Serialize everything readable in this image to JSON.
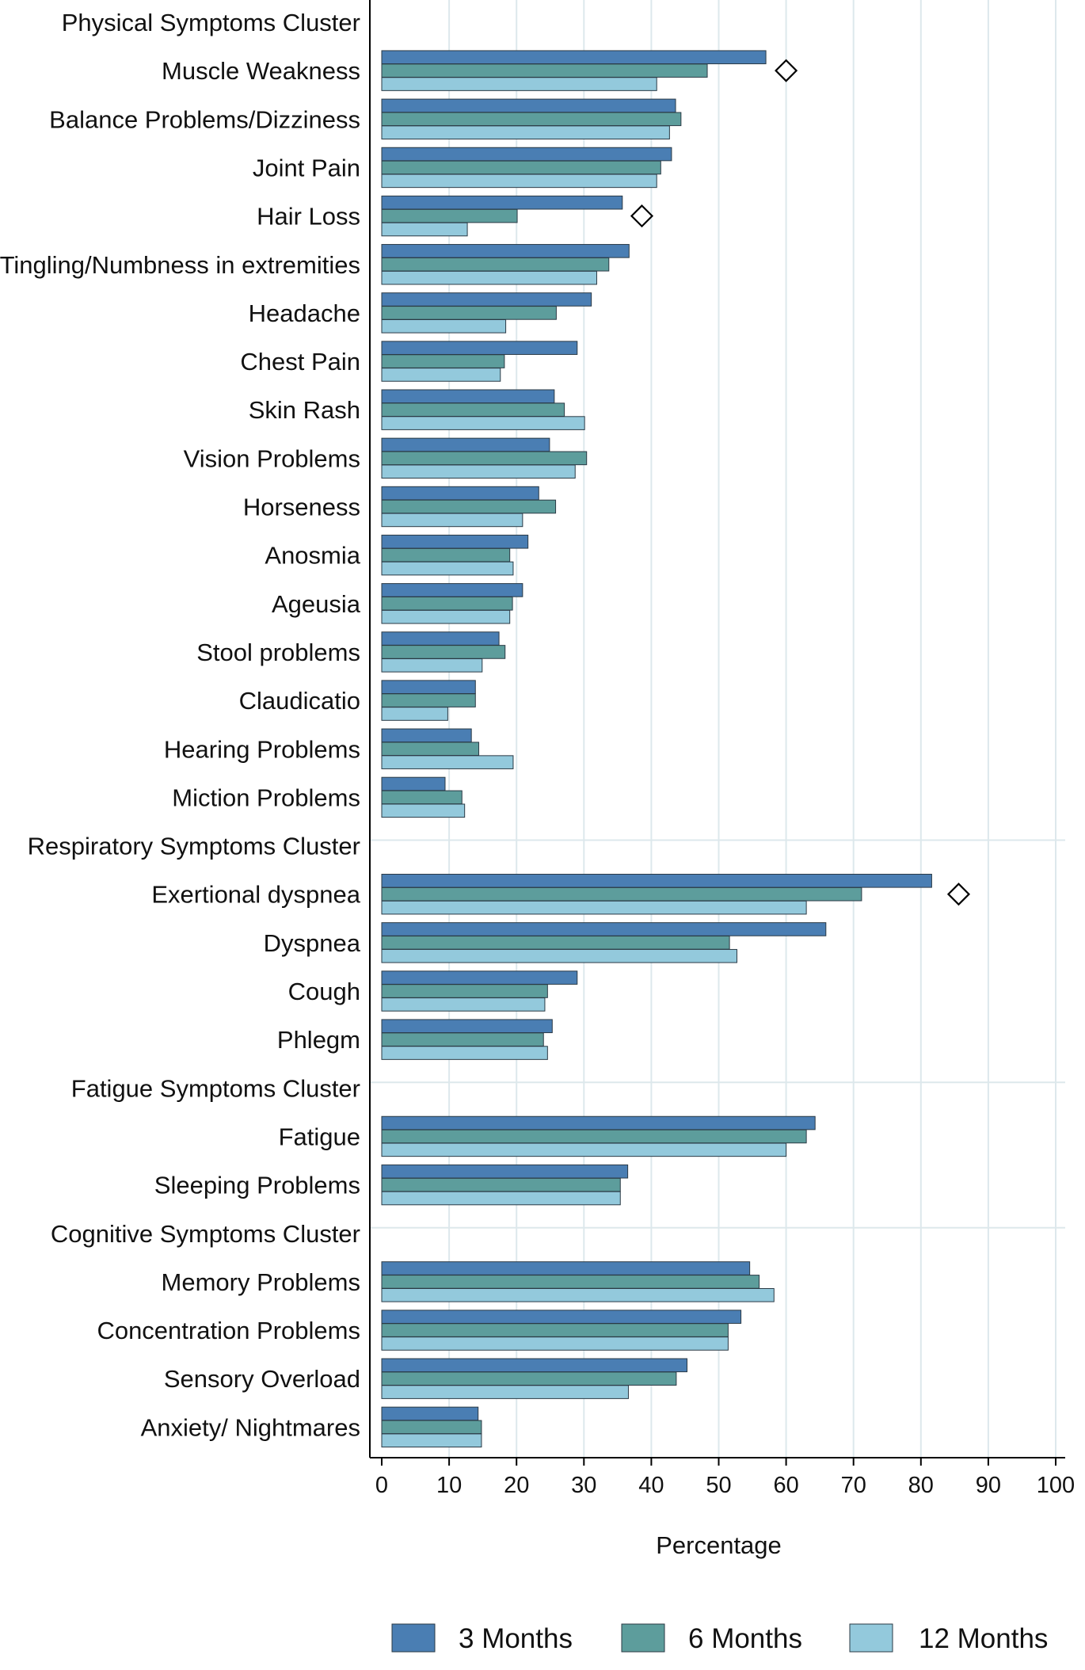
{
  "chart_data": {
    "type": "bar",
    "orientation": "horizontal",
    "xlabel": "Percentage",
    "xlim": [
      0,
      100
    ],
    "xticks": [
      0,
      10,
      20,
      30,
      40,
      50,
      60,
      70,
      80,
      90,
      100
    ],
    "grid": true,
    "legend_position": "bottom",
    "series": [
      {
        "name": "3 Months",
        "color": "#4a7eb3"
      },
      {
        "name": "6 Months",
        "color": "#5d9d9c"
      },
      {
        "name": "12 Months",
        "color": "#93c9dc"
      }
    ],
    "rows": [
      {
        "label": "Physical Symptoms Cluster",
        "header": true
      },
      {
        "label": "Muscle Weakness",
        "values": [
          57,
          48.3,
          40.8
        ],
        "marker": 60
      },
      {
        "label": "Balance Problems/Dizziness",
        "values": [
          43.6,
          44.4,
          42.7
        ]
      },
      {
        "label": "Joint Pain",
        "values": [
          43,
          41.4,
          40.8
        ]
      },
      {
        "label": "Hair Loss",
        "values": [
          35.7,
          20.1,
          12.7
        ],
        "marker": 38.6
      },
      {
        "label": "Tingling/Numbness in extremities",
        "values": [
          36.7,
          33.7,
          31.9
        ]
      },
      {
        "label": "Headache",
        "values": [
          31.1,
          25.9,
          18.4
        ]
      },
      {
        "label": "Chest Pain",
        "values": [
          29,
          18.2,
          17.6
        ]
      },
      {
        "label": "Skin Rash",
        "values": [
          25.6,
          27.1,
          30.1
        ]
      },
      {
        "label": "Vision Problems",
        "values": [
          24.9,
          30.4,
          28.7
        ]
      },
      {
        "label": "Horseness",
        "values": [
          23.3,
          25.8,
          20.9
        ]
      },
      {
        "label": "Anosmia",
        "values": [
          21.7,
          19,
          19.5
        ]
      },
      {
        "label": "Ageusia",
        "values": [
          20.9,
          19.4,
          19
        ]
      },
      {
        "label": "Stool problems",
        "values": [
          17.4,
          18.3,
          14.9
        ]
      },
      {
        "label": "Claudicatio",
        "values": [
          13.9,
          13.9,
          9.8
        ]
      },
      {
        "label": "Hearing Problems",
        "values": [
          13.3,
          14.4,
          19.5
        ]
      },
      {
        "label": "Miction Problems",
        "values": [
          9.4,
          11.9,
          12.3
        ]
      },
      {
        "label": "Respiratory Symptoms Cluster",
        "header": true
      },
      {
        "label": "Exertional dyspnea",
        "values": [
          81.6,
          71.2,
          63
        ],
        "marker": 85.6
      },
      {
        "label": "Dyspnea",
        "values": [
          65.9,
          51.6,
          52.7
        ]
      },
      {
        "label": "Cough",
        "values": [
          29,
          24.6,
          24.2
        ]
      },
      {
        "label": "Phlegm",
        "values": [
          25.3,
          24,
          24.6
        ]
      },
      {
        "label": "Fatigue Symptoms Cluster",
        "header": true
      },
      {
        "label": "Fatigue",
        "values": [
          64.3,
          63,
          60
        ]
      },
      {
        "label": "Sleeping Problems",
        "values": [
          36.5,
          35.4,
          35.4
        ]
      },
      {
        "label": "Cognitive Symptoms Cluster",
        "header": true
      },
      {
        "label": "Memory Problems",
        "values": [
          54.6,
          56,
          58.2
        ]
      },
      {
        "label": "Concentration Problems",
        "values": [
          53.3,
          51.4,
          51.4
        ]
      },
      {
        "label": "Sensory Overload",
        "values": [
          45.3,
          43.7,
          36.6
        ]
      },
      {
        "label": "Anxiety/ Nightmares",
        "values": [
          14.3,
          14.8,
          14.8
        ]
      }
    ]
  }
}
